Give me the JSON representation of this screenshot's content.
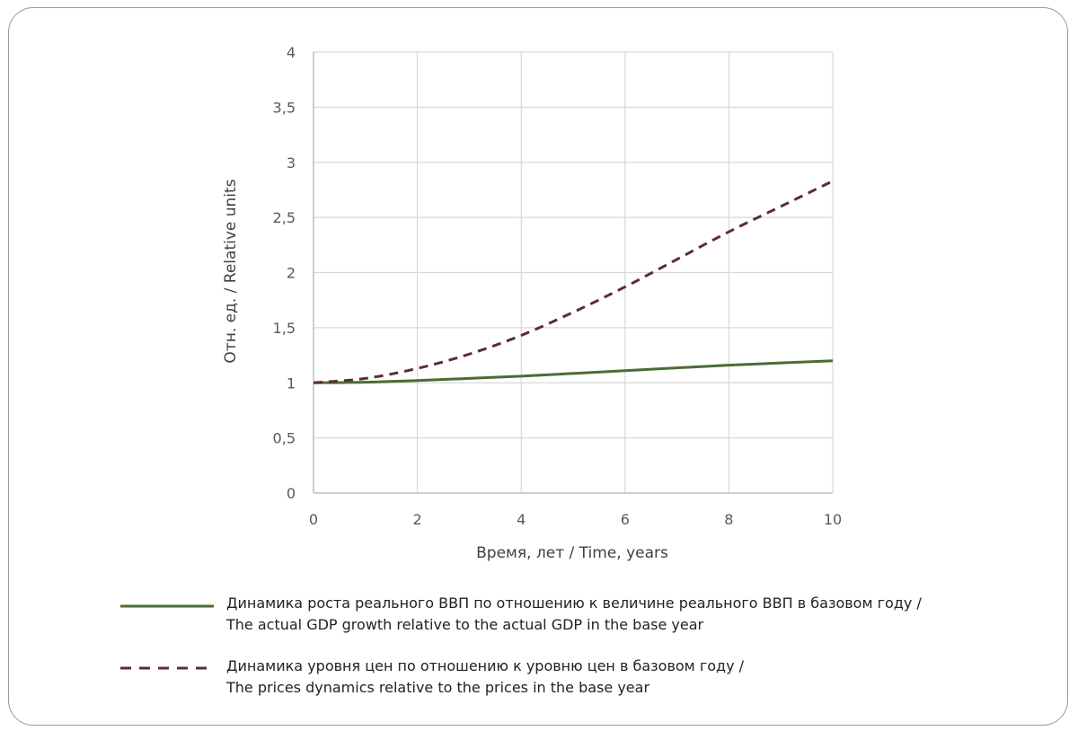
{
  "colors": {
    "gdp": "#4d6b34",
    "prices": "#5a2e33",
    "grid": "#d9d9d9",
    "axis": "#bfbfbf",
    "text": "#595959"
  },
  "chart_data": {
    "type": "line",
    "xlabel": "Время, лет / Time, years",
    "ylabel": "Отн. ед. / Relative units",
    "xlim": [
      0,
      10
    ],
    "ylim": [
      0,
      4
    ],
    "x_ticks": [
      "0",
      "2",
      "4",
      "6",
      "8",
      "10"
    ],
    "y_ticks": [
      "0",
      "0,5",
      "1",
      "1,5",
      "2",
      "2,5",
      "3",
      "3,5",
      "4"
    ],
    "grid": true,
    "legend_position": "bottom",
    "series": [
      {
        "name": "Динамика роста реального ВВП по отношению к величине реального ВВП в базовом году / The actual GDP growth relative to the actual GDP in the base year",
        "name_ru": "Динамика роста реального ВВП по отношению к величине реального ВВП в базовом году /",
        "name_en": "The actual GDP growth relative to the actual GDP in the base year",
        "style": "solid",
        "x": [
          0,
          1,
          2,
          3,
          4,
          5,
          6,
          7,
          8,
          9,
          10
        ],
        "values": [
          1.0,
          1.005,
          1.02,
          1.04,
          1.06,
          1.085,
          1.11,
          1.135,
          1.16,
          1.18,
          1.2
        ]
      },
      {
        "name": "Динамика уровня цен по отношению к уровню цен в базовом году / The prices dynamics relative to the prices in the base year",
        "name_ru": "Динамика уровня цен по отношению к уровню цен в базовом году /",
        "name_en": "The prices dynamics relative to the prices in the base year",
        "style": "dashed",
        "x": [
          0,
          1,
          2,
          3,
          4,
          5,
          6,
          7,
          8,
          9,
          10
        ],
        "values": [
          1.0,
          1.04,
          1.13,
          1.26,
          1.43,
          1.64,
          1.87,
          2.12,
          2.37,
          2.6,
          2.83
        ]
      }
    ]
  }
}
